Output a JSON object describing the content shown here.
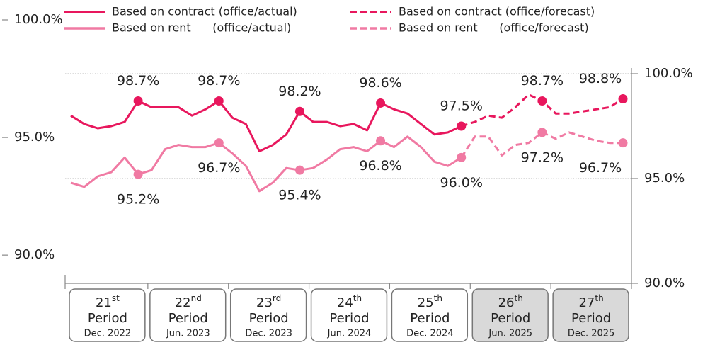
{
  "chart_data": {
    "type": "line",
    "ylim": [
      88.8,
      100
    ],
    "yticks": [
      {
        "value": 90,
        "label": "90.0%"
      },
      {
        "value": 95,
        "label": "95.0%"
      },
      {
        "value": 100,
        "label": "100.0%"
      }
    ],
    "y2lim": [
      90,
      100
    ],
    "y2ticks": [
      {
        "value": 90,
        "label": "90.0%"
      },
      {
        "value": 95,
        "label": "95.0%"
      },
      {
        "value": 100,
        "label": "100.0%"
      }
    ],
    "grid": true,
    "periods": [
      {
        "ordinal": "21",
        "suffix": "st",
        "label": "Period",
        "date": "Dec. 2022",
        "forecast": false
      },
      {
        "ordinal": "22",
        "suffix": "nd",
        "label": "Period",
        "date": "Jun. 2023",
        "forecast": false
      },
      {
        "ordinal": "23",
        "suffix": "rd",
        "label": "Period",
        "date": "Dec. 2023",
        "forecast": false
      },
      {
        "ordinal": "24",
        "suffix": "th",
        "label": "Period",
        "date": "Jun. 2024",
        "forecast": false
      },
      {
        "ordinal": "25",
        "suffix": "th",
        "label": "Period",
        "date": "Dec. 2024",
        "forecast": false
      },
      {
        "ordinal": "26",
        "suffix": "th",
        "label": "Period",
        "date": "Jun. 2025",
        "forecast": true
      },
      {
        "ordinal": "27",
        "suffix": "th",
        "label": "Period",
        "date": "Dec. 2025",
        "forecast": true
      }
    ],
    "series": [
      {
        "name": "Based on contract (office/actual)",
        "color": "#e8175d",
        "dashed": false,
        "axis": "y2",
        "label_side": "above",
        "values": [
          98.0,
          97.6,
          97.4,
          97.5,
          97.7,
          98.7,
          98.4,
          98.4,
          98.4,
          98.0,
          98.3,
          98.7,
          97.9,
          97.6,
          96.3,
          96.6,
          97.1,
          98.2,
          97.7,
          97.7,
          97.5,
          97.6,
          97.3,
          98.6,
          98.3,
          98.1,
          97.6,
          97.1,
          97.2,
          97.5,
          null,
          null,
          null,
          null,
          null,
          null,
          null,
          null,
          null,
          null,
          null,
          null
        ],
        "value_labels": [
          null,
          null,
          null,
          null,
          null,
          "98.7%",
          null,
          null,
          null,
          null,
          null,
          "98.7%",
          null,
          null,
          null,
          null,
          null,
          "98.2%",
          null,
          null,
          null,
          null,
          null,
          "98.6%",
          null,
          null,
          null,
          null,
          null,
          "97.5%",
          null,
          null,
          null,
          null,
          null,
          null,
          null,
          null,
          null,
          null,
          null,
          null
        ]
      },
      {
        "name": "Based on rent      (office/actual)",
        "color": "#f07aa3",
        "dashed": false,
        "axis": "y2",
        "label_side": "below",
        "values": [
          94.8,
          94.6,
          95.1,
          95.3,
          96.0,
          95.2,
          95.4,
          96.4,
          96.6,
          96.5,
          96.5,
          96.7,
          96.2,
          95.6,
          94.4,
          94.8,
          95.5,
          95.4,
          95.5,
          95.9,
          96.4,
          96.5,
          96.3,
          96.8,
          96.5,
          97.0,
          96.5,
          95.8,
          95.6,
          96.0,
          null,
          null,
          null,
          null,
          null,
          null,
          null,
          null,
          null,
          null,
          null,
          null
        ],
        "value_labels": [
          null,
          null,
          null,
          null,
          null,
          "95.2%",
          null,
          null,
          null,
          null,
          null,
          "96.7%",
          null,
          null,
          null,
          null,
          null,
          "95.4%",
          null,
          null,
          null,
          null,
          null,
          "96.8%",
          null,
          null,
          null,
          null,
          null,
          "96.0%",
          null,
          null,
          null,
          null,
          null,
          null,
          null,
          null,
          null,
          null,
          null,
          null
        ]
      },
      {
        "name": "Based on contract (office/forecast)",
        "color": "#e8175d",
        "dashed": true,
        "axis": "y2",
        "label_side": "above",
        "values": [
          null,
          null,
          null,
          null,
          null,
          null,
          null,
          null,
          null,
          null,
          null,
          null,
          null,
          null,
          null,
          null,
          null,
          null,
          null,
          null,
          null,
          null,
          null,
          null,
          null,
          null,
          null,
          null,
          null,
          97.5,
          97.7,
          98.0,
          97.9,
          98.4,
          99.0,
          98.7,
          98.1,
          98.1,
          98.2,
          98.3,
          98.4,
          98.8
        ],
        "value_labels": [
          null,
          null,
          null,
          null,
          null,
          null,
          null,
          null,
          null,
          null,
          null,
          null,
          null,
          null,
          null,
          null,
          null,
          null,
          null,
          null,
          null,
          null,
          null,
          null,
          null,
          null,
          null,
          null,
          null,
          null,
          null,
          null,
          null,
          null,
          null,
          "98.7%",
          null,
          null,
          null,
          null,
          null,
          "98.8%"
        ]
      },
      {
        "name": "Based on rent      (office/forecast)",
        "color": "#f07aa3",
        "dashed": true,
        "axis": "y2",
        "label_side": "below",
        "values": [
          null,
          null,
          null,
          null,
          null,
          null,
          null,
          null,
          null,
          null,
          null,
          null,
          null,
          null,
          null,
          null,
          null,
          null,
          null,
          null,
          null,
          null,
          null,
          null,
          null,
          null,
          null,
          null,
          null,
          96.0,
          97.0,
          97.0,
          96.1,
          96.6,
          96.7,
          97.2,
          96.9,
          97.2,
          97.0,
          96.8,
          96.7,
          96.7
        ],
        "value_labels": [
          null,
          null,
          null,
          null,
          null,
          null,
          null,
          null,
          null,
          null,
          null,
          null,
          null,
          null,
          null,
          null,
          null,
          null,
          null,
          null,
          null,
          null,
          null,
          null,
          null,
          null,
          null,
          null,
          null,
          null,
          null,
          null,
          null,
          null,
          null,
          "97.2%",
          null,
          null,
          null,
          null,
          null,
          "96.7%"
        ]
      }
    ]
  }
}
